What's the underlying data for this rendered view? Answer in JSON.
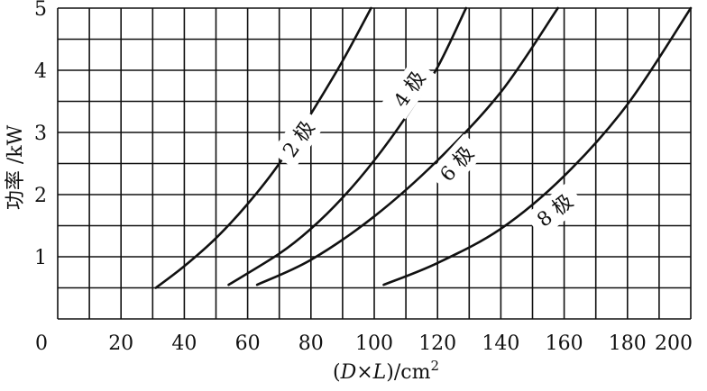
{
  "chart_data": {
    "type": "line",
    "title": "",
    "xlabel": "(D×L)/cm²",
    "ylabel": "功率 /kW",
    "xlim": [
      0,
      200
    ],
    "ylim": [
      0,
      5
    ],
    "x_ticks": [
      0,
      20,
      40,
      60,
      80,
      100,
      120,
      140,
      160,
      180,
      200
    ],
    "y_ticks": [
      1,
      2,
      3,
      4,
      5
    ],
    "x_minor_step": 10,
    "y_minor_step": 0.5,
    "grid": true,
    "series": [
      {
        "name": "2 极",
        "label_text": "2 极",
        "points": [
          [
            31,
            0.5
          ],
          [
            40,
            0.85
          ],
          [
            50,
            1.3
          ],
          [
            60,
            1.85
          ],
          [
            70,
            2.5
          ],
          [
            80,
            3.3
          ],
          [
            90,
            4.15
          ],
          [
            99,
            5
          ]
        ]
      },
      {
        "name": "4 极",
        "label_text": "4 极",
        "points": [
          [
            54,
            0.55
          ],
          [
            70,
            1.05
          ],
          [
            80,
            1.45
          ],
          [
            90,
            1.95
          ],
          [
            100,
            2.55
          ],
          [
            110,
            3.25
          ],
          [
            120,
            4.05
          ],
          [
            129,
            5
          ]
        ]
      },
      {
        "name": "6 极",
        "label_text": "6 极",
        "points": [
          [
            63,
            0.55
          ],
          [
            80,
            0.95
          ],
          [
            100,
            1.65
          ],
          [
            120,
            2.55
          ],
          [
            140,
            3.65
          ],
          [
            158,
            5
          ]
        ]
      },
      {
        "name": "8 极",
        "label_text": "8 极",
        "points": [
          [
            103,
            0.55
          ],
          [
            120,
            0.9
          ],
          [
            140,
            1.45
          ],
          [
            160,
            2.3
          ],
          [
            180,
            3.45
          ],
          [
            200,
            5
          ]
        ]
      }
    ]
  }
}
